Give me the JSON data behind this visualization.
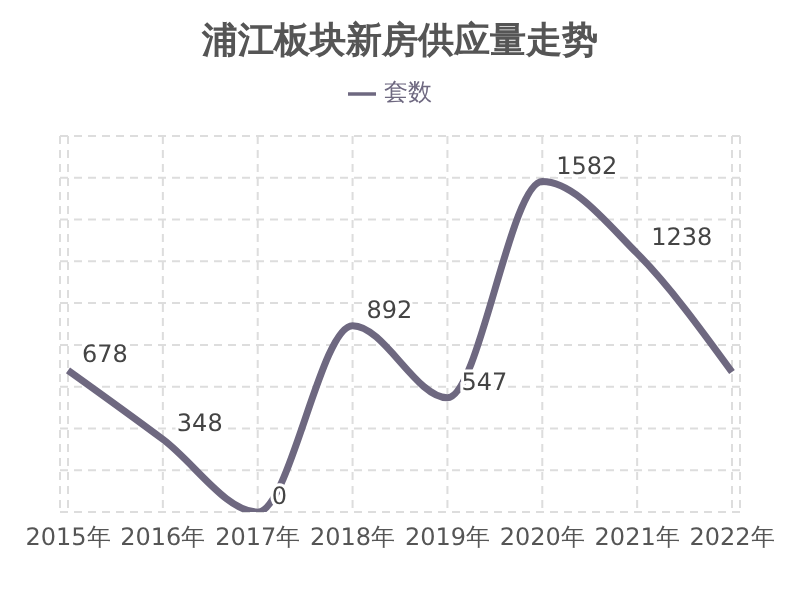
{
  "chart_data": {
    "type": "line",
    "title": "浦江板块新房供应量走势",
    "categories": [
      "2015年",
      "2016年",
      "2017年",
      "2018年",
      "2019年",
      "2020年",
      "2021年",
      "2022年"
    ],
    "series": [
      {
        "name": "套数",
        "color": "#6e6880",
        "values": [
          678,
          348,
          0,
          892,
          547,
          1582,
          1238,
          670
        ],
        "value_labels": [
          "678",
          "348",
          "0",
          "892",
          "547",
          "1582",
          "1238",
          null
        ]
      }
    ],
    "ylim": [
      0,
      1800
    ],
    "yticks": [
      {
        "value": 0,
        "label": null
      },
      {
        "value": 200,
        "label": null
      },
      {
        "value": 400,
        "label": null
      },
      {
        "value": 600,
        "label": null
      },
      {
        "value": 800,
        "label": null
      },
      {
        "value": 1000,
        "label": null
      },
      {
        "value": 1200,
        "label": null
      },
      {
        "value": 1400,
        "label": null
      },
      {
        "value": 1600,
        "label": null
      },
      {
        "value": 1800,
        "label": null
      }
    ],
    "grid": true,
    "legend": "top",
    "tick_labels": "x",
    "marker": "none",
    "line_style": "solid"
  }
}
